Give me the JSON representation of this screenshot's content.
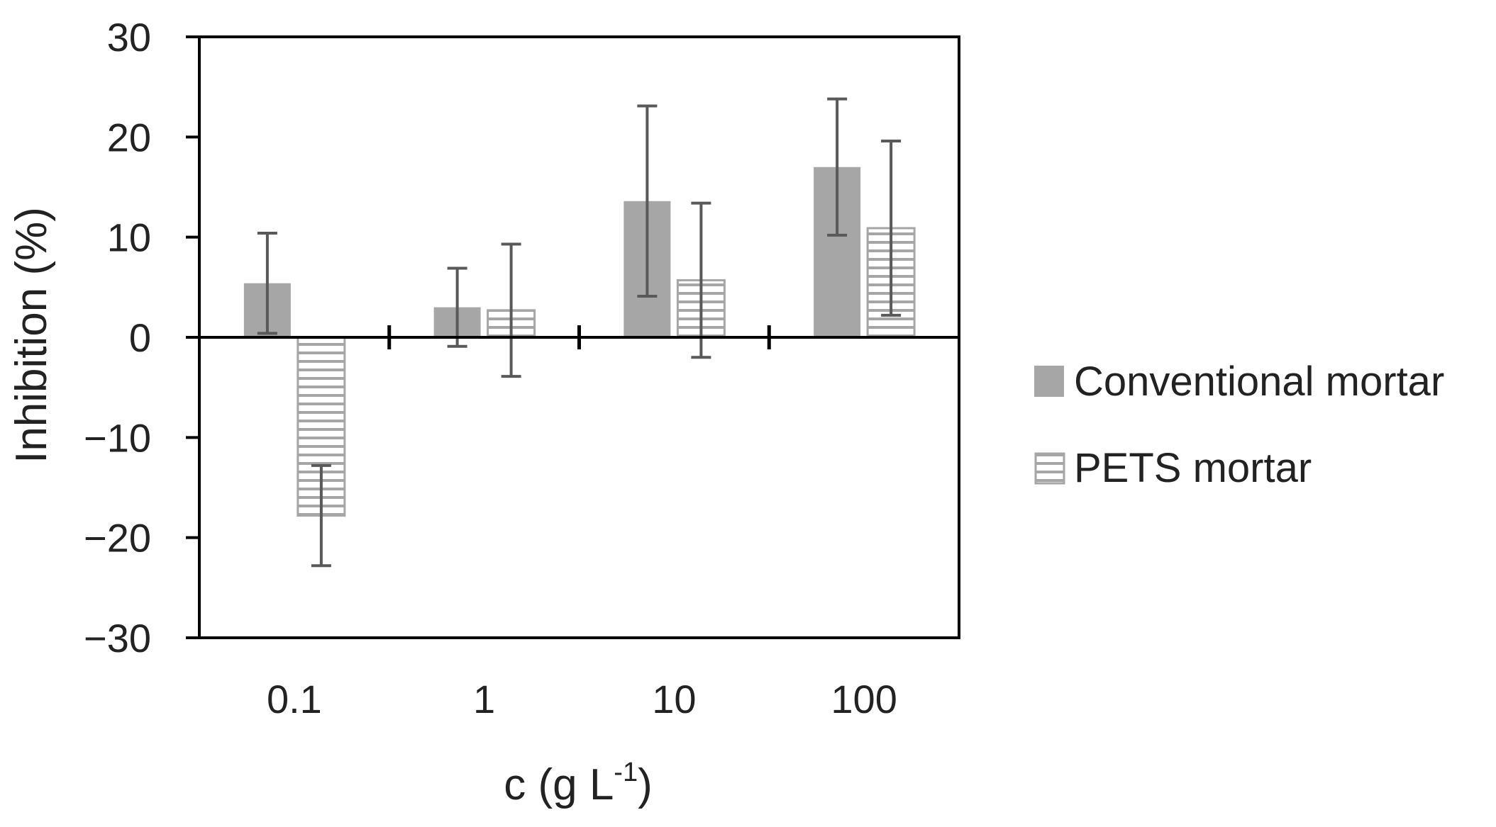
{
  "chart_data": {
    "type": "bar",
    "categories": [
      "0.1",
      "1",
      "10",
      "100"
    ],
    "series": [
      {
        "name": "Conventional mortar",
        "values": [
          5.4,
          3.0,
          13.6,
          17.0
        ],
        "error": [
          5.0,
          3.9,
          9.5,
          6.8
        ],
        "fill": "#a6a6a6",
        "pattern": "solid"
      },
      {
        "name": "PETS mortar",
        "values": [
          -17.8,
          2.7,
          5.7,
          10.9
        ],
        "error": [
          5.0,
          6.6,
          7.7,
          8.7
        ],
        "fill": "#ffffff",
        "pattern": "horizontal-lines"
      }
    ],
    "ylim": [
      -30,
      30
    ],
    "yticks": [
      -30,
      -20,
      -10,
      0,
      10,
      20,
      30
    ],
    "ytick_labels": [
      "−30",
      "−20",
      "−10",
      "0",
      "10",
      "20",
      "30"
    ],
    "ylabel": "Inhibition (%)",
    "xlabel": "c (g L",
    "xlabel_superscript": "-1",
    "xlabel_suffix": ")",
    "legend_position": "right",
    "grid": false,
    "colors": {
      "axis": "#000000",
      "error_bar": "#595959",
      "hatch_line": "#a6a6a6",
      "text": "#222222"
    }
  }
}
